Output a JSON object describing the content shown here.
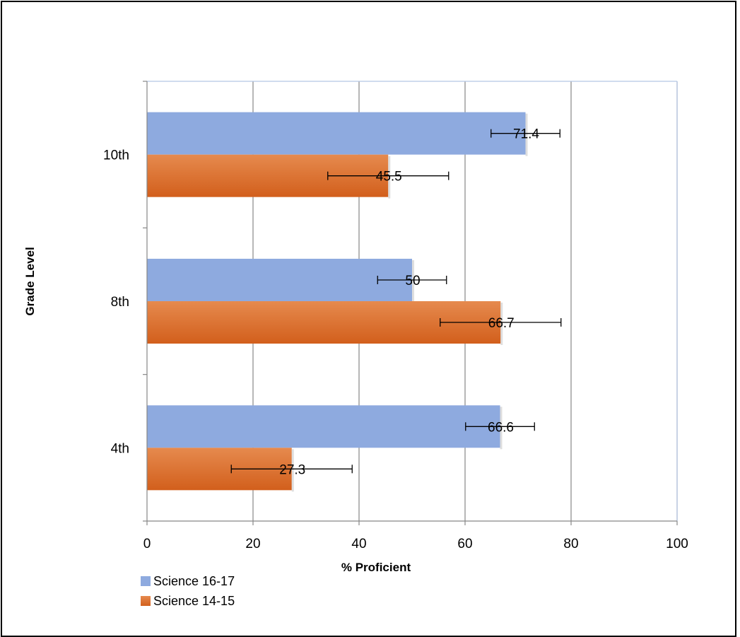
{
  "chart_data": {
    "type": "bar",
    "orientation": "horizontal",
    "categories": [
      "4th",
      "8th",
      "10th"
    ],
    "series": [
      {
        "name": "Science 16-17",
        "color": "#8eaadf",
        "values": [
          66.6,
          50,
          71.4
        ],
        "error": [
          6.5,
          6.5,
          6.5
        ]
      },
      {
        "name": "Science 14-15",
        "color": "#e06a24",
        "values": [
          27.3,
          66.7,
          45.5
        ],
        "error": [
          11.4,
          11.4,
          11.4
        ]
      }
    ],
    "data_labels": {
      "Science 16-17": [
        "66.6",
        "50",
        "71.4"
      ],
      "Science 14-15": [
        "27.3",
        "66.7",
        "45.5"
      ]
    },
    "xlabel": "% Proficient",
    "ylabel": "Grade Level",
    "xlim": [
      0,
      100
    ],
    "xticks": [
      "0",
      "20",
      "40",
      "60",
      "80",
      "100"
    ],
    "grid": "vertical",
    "legend_position": "bottom-left"
  }
}
